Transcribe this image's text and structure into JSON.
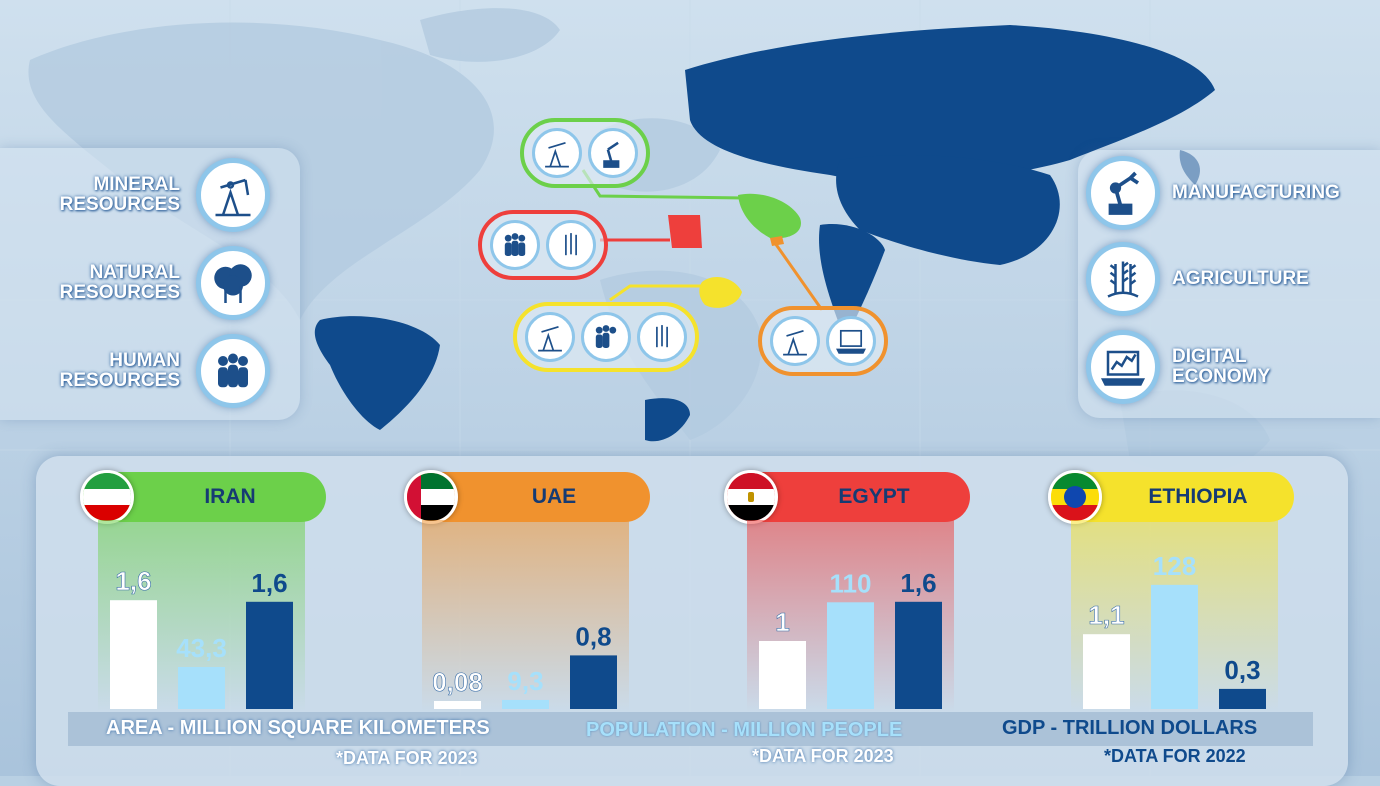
{
  "left_panel": {
    "items": [
      {
        "line1": "MINERAL",
        "line2": "RESOURCES",
        "icon": "oil-pump-icon"
      },
      {
        "line1": "NATURAL",
        "line2": "RESOURCES",
        "icon": "trees-icon"
      },
      {
        "line1": "HUMAN",
        "line2": "RESOURCES",
        "icon": "people-icon"
      }
    ]
  },
  "right_panel": {
    "items": [
      {
        "line1": "MANUFACTURING",
        "line2": "",
        "icon": "robot-arm-icon"
      },
      {
        "line1": "AGRICULTURE",
        "line2": "",
        "icon": "wheat-icon"
      },
      {
        "line1": "DIGITAL",
        "line2": "ECONOMY",
        "icon": "laptop-chart-icon"
      }
    ]
  },
  "colors": {
    "iran": "#6cd04a",
    "uae": "#f0922e",
    "egypt": "#ee3f3c",
    "ethiopia": "#f5e22c",
    "area_bar": "#ffffff",
    "population_bar": "#a6e0fb",
    "gdp_bar": "#0f4a8c",
    "map_country": "#0f4a8c"
  },
  "chart_data": {
    "type": "bar",
    "categories": [
      "IRAN",
      "UAE",
      "EGYPT",
      "ETHIOPIA"
    ],
    "series": [
      {
        "name": "AREA - MILLION SQUARE KILOMETERS",
        "values": [
          1.6,
          0.08,
          1,
          1.1
        ],
        "labels": [
          "1,6",
          "0,08",
          "1",
          "1,1"
        ]
      },
      {
        "name": "POPULATION - MILLION PEOPLE",
        "values": [
          43.3,
          9.3,
          110,
          128
        ],
        "labels": [
          "43,3",
          "9,3",
          "110",
          "128"
        ]
      },
      {
        "name": "GDP - TRILLION  DOLLARS",
        "values": [
          1.6,
          0.8,
          1.6,
          0.3
        ],
        "labels": [
          "1,6",
          "0,8",
          "1,6",
          "0,3"
        ]
      }
    ],
    "notes": [
      "*DATA FOR 2023",
      "*DATA FOR 2023",
      "*DATA FOR 2022"
    ]
  }
}
